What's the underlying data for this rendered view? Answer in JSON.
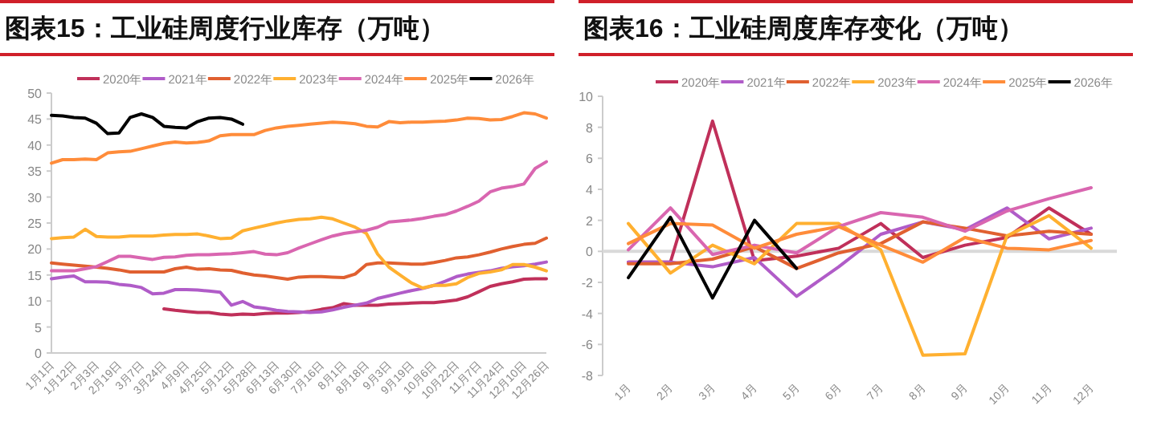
{
  "chart_data": [
    {
      "type": "line",
      "title": "图表15：工业硅周度行业库存（万吨）",
      "categories": [
        "1月1日",
        null,
        "1月12日",
        null,
        "2月3日",
        null,
        "2月19日",
        null,
        "3月7日",
        null,
        "3月24日",
        null,
        "4月9日",
        null,
        "4月25日",
        null,
        "5月12日",
        null,
        "5月28日",
        null,
        "6月13日",
        null,
        "6月30日",
        null,
        "7月16日",
        null,
        "8月1日",
        null,
        "8月18日",
        null,
        "9月3日",
        null,
        "9月19日",
        null,
        "10月6日",
        null,
        "10月22日",
        null,
        "11月7日",
        null,
        "11月24日",
        null,
        "12月10日",
        null,
        "12月26日"
      ],
      "ylim": [
        0,
        50
      ],
      "yticks": [
        0,
        5,
        10,
        15,
        20,
        25,
        30,
        35,
        40,
        45,
        50
      ],
      "legend": "top",
      "grid": false,
      "series": [
        {
          "name": "2020年",
          "color": "#c0305a",
          "values": [
            null,
            null,
            null,
            null,
            null,
            null,
            null,
            null,
            null,
            null,
            8.5,
            8.2,
            8,
            7.8,
            7.8,
            7.5,
            7.3,
            7.5,
            7.4,
            7.6,
            7.7,
            7.7,
            7.8,
            8,
            8.4,
            8.7,
            9.5,
            9.2,
            9.2,
            9.2,
            9.4,
            9.5,
            9.6,
            9.7,
            9.7,
            9.9,
            10.2,
            10.8,
            11.8,
            12.8,
            13.3,
            13.7,
            14.2,
            14.3,
            14.3
          ]
        },
        {
          "name": "2021年",
          "color": "#b05cc8",
          "values": [
            14.3,
            14.6,
            14.8,
            13.7,
            13.7,
            13.6,
            13.2,
            13,
            12.6,
            11.4,
            11.5,
            12.2,
            12.2,
            12.1,
            11.9,
            11.7,
            9.2,
            9.9,
            8.9,
            8.6,
            8.2,
            8,
            7.9,
            7.8,
            7.9,
            8.3,
            8.8,
            9.2,
            9.6,
            10.5,
            11,
            11.5,
            12,
            12.4,
            13,
            13.8,
            14.7,
            15.2,
            15.5,
            15.8,
            16.3,
            16.6,
            16.8,
            17.1,
            17.5
          ]
        },
        {
          "name": "2022年",
          "color": "#e06030",
          "values": [
            17.3,
            17.1,
            16.9,
            16.7,
            16.5,
            16.3,
            16,
            15.6,
            15.6,
            15.6,
            15.6,
            16.2,
            16.5,
            16.1,
            16.2,
            16,
            15.9,
            15.4,
            15,
            14.8,
            14.5,
            14.2,
            14.6,
            14.7,
            14.7,
            14.6,
            14.5,
            15.2,
            17,
            17.3,
            17.3,
            17.2,
            17.1,
            17.1,
            17.4,
            17.8,
            18.3,
            18.5,
            18.9,
            19.4,
            20,
            20.5,
            20.9,
            21.1,
            22.1
          ]
        },
        {
          "name": "2023年",
          "color": "#ffb030",
          "values": [
            22,
            22.2,
            22.3,
            23.8,
            22.4,
            22.3,
            22.3,
            22.5,
            22.5,
            22.5,
            22.7,
            22.8,
            22.8,
            22.9,
            22.5,
            22,
            22.1,
            23.5,
            24,
            24.5,
            25,
            25.4,
            25.7,
            25.8,
            26.1,
            25.8,
            25,
            24.2,
            23,
            19,
            16.5,
            15,
            13.5,
            12.5,
            13,
            13,
            13.3,
            14.5,
            15.3,
            15.6,
            16,
            17,
            17,
            16.5,
            15.8
          ]
        },
        {
          "name": "2024年",
          "color": "#d966b0",
          "values": [
            15.8,
            15.8,
            15.8,
            16.2,
            16.6,
            17.6,
            18.6,
            18.6,
            18.3,
            18,
            18.4,
            18.5,
            18.8,
            18.9,
            18.9,
            19,
            19.1,
            19.3,
            19.5,
            19,
            18.9,
            19.3,
            20.2,
            21,
            21.8,
            22.5,
            23,
            23.3,
            23.6,
            24.2,
            25.2,
            25.4,
            25.6,
            25.9,
            26.3,
            26.6,
            27.3,
            28.2,
            29.2,
            31,
            31.7,
            32,
            32.5,
            35.5,
            36.8
          ]
        },
        {
          "name": "2025年",
          "color": "#ff8c3a",
          "values": [
            36.5,
            37.2,
            37.2,
            37.3,
            37.2,
            38.5,
            38.7,
            38.8,
            39.3,
            39.8,
            40.3,
            40.6,
            40.4,
            40.5,
            40.8,
            41.8,
            42,
            42,
            42,
            42.8,
            43.3,
            43.6,
            43.8,
            44,
            44.2,
            44.4,
            44.3,
            44.1,
            43.6,
            43.5,
            44.5,
            44.3,
            44.4,
            44.4,
            44.5,
            44.6,
            44.8,
            45.2,
            45.1,
            44.8,
            44.9,
            45.5,
            46.2,
            46,
            45.2
          ]
        },
        {
          "name": "2026年",
          "color": "#000000",
          "values": [
            45.7,
            45.6,
            45.3,
            45.2,
            44.2,
            42.2,
            42.3,
            45.3,
            46,
            45.3,
            43.6,
            43.4,
            43.3,
            44.5,
            45.2,
            45.3,
            45,
            44,
            null,
            null,
            null,
            null,
            null,
            null,
            null,
            null,
            null,
            null,
            null,
            null,
            null,
            null,
            null,
            null,
            null,
            null,
            null,
            null,
            null,
            null,
            null,
            null,
            null,
            null,
            null
          ]
        }
      ]
    },
    {
      "type": "line",
      "title": "图表16：工业硅周度库存变化（万吨）",
      "categories": [
        "1月",
        "2月",
        "3月",
        "4月",
        "5月",
        "6月",
        "7月",
        "8月",
        "9月",
        "10月",
        "11月",
        "12月"
      ],
      "ylim": [
        -8,
        10
      ],
      "ref_lines": [
        {
          "axis": "y",
          "value": 0,
          "color": "#d9d9d9"
        }
      ],
      "yticks": [
        -8,
        -6,
        -4,
        -2,
        0,
        2,
        4,
        6,
        8,
        10
      ],
      "legend": "top",
      "grid": false,
      "series": [
        {
          "name": "2020年",
          "color": "#c0305a",
          "values": [
            -0.7,
            -0.7,
            8.4,
            -0.6,
            -0.3,
            0.2,
            1.8,
            -0.4,
            0.4,
            0.9,
            2.8,
            1.1
          ]
        },
        {
          "name": "2021年",
          "color": "#b05cc8",
          "values": [
            -0.7,
            -0.7,
            -1,
            -0.4,
            -2.9,
            -1,
            1.1,
            1.9,
            1.4,
            2.8,
            0.8,
            1.5
          ]
        },
        {
          "name": "2022年",
          "color": "#e06030",
          "values": [
            -0.8,
            -0.8,
            -0.5,
            0.3,
            -1.1,
            -0.1,
            0.5,
            1.9,
            1.5,
            1,
            1.3,
            1.1
          ]
        },
        {
          "name": "2023年",
          "color": "#ffb030",
          "values": [
            1.8,
            -1.4,
            0.4,
            -0.8,
            1.8,
            1.8,
            0.1,
            -6.7,
            -6.6,
            1,
            2.3,
            0.2
          ]
        },
        {
          "name": "2024年",
          "color": "#d966b0",
          "values": [
            0.1,
            2.8,
            -0.2,
            0.4,
            -0.1,
            1.6,
            2.5,
            2.2,
            1.3,
            2.6,
            3.4,
            4.1
          ]
        },
        {
          "name": "2025年",
          "color": "#ff8c3a",
          "values": [
            0.5,
            1.8,
            1.7,
            0.2,
            1.1,
            1.6,
            0.4,
            -0.7,
            0.9,
            0.2,
            0.1,
            0.7
          ]
        },
        {
          "name": "2026年",
          "color": "#000000",
          "values": [
            -1.7,
            2.2,
            -3,
            2,
            -1.1,
            null,
            null,
            null,
            null,
            null,
            null,
            null
          ]
        }
      ]
    }
  ]
}
